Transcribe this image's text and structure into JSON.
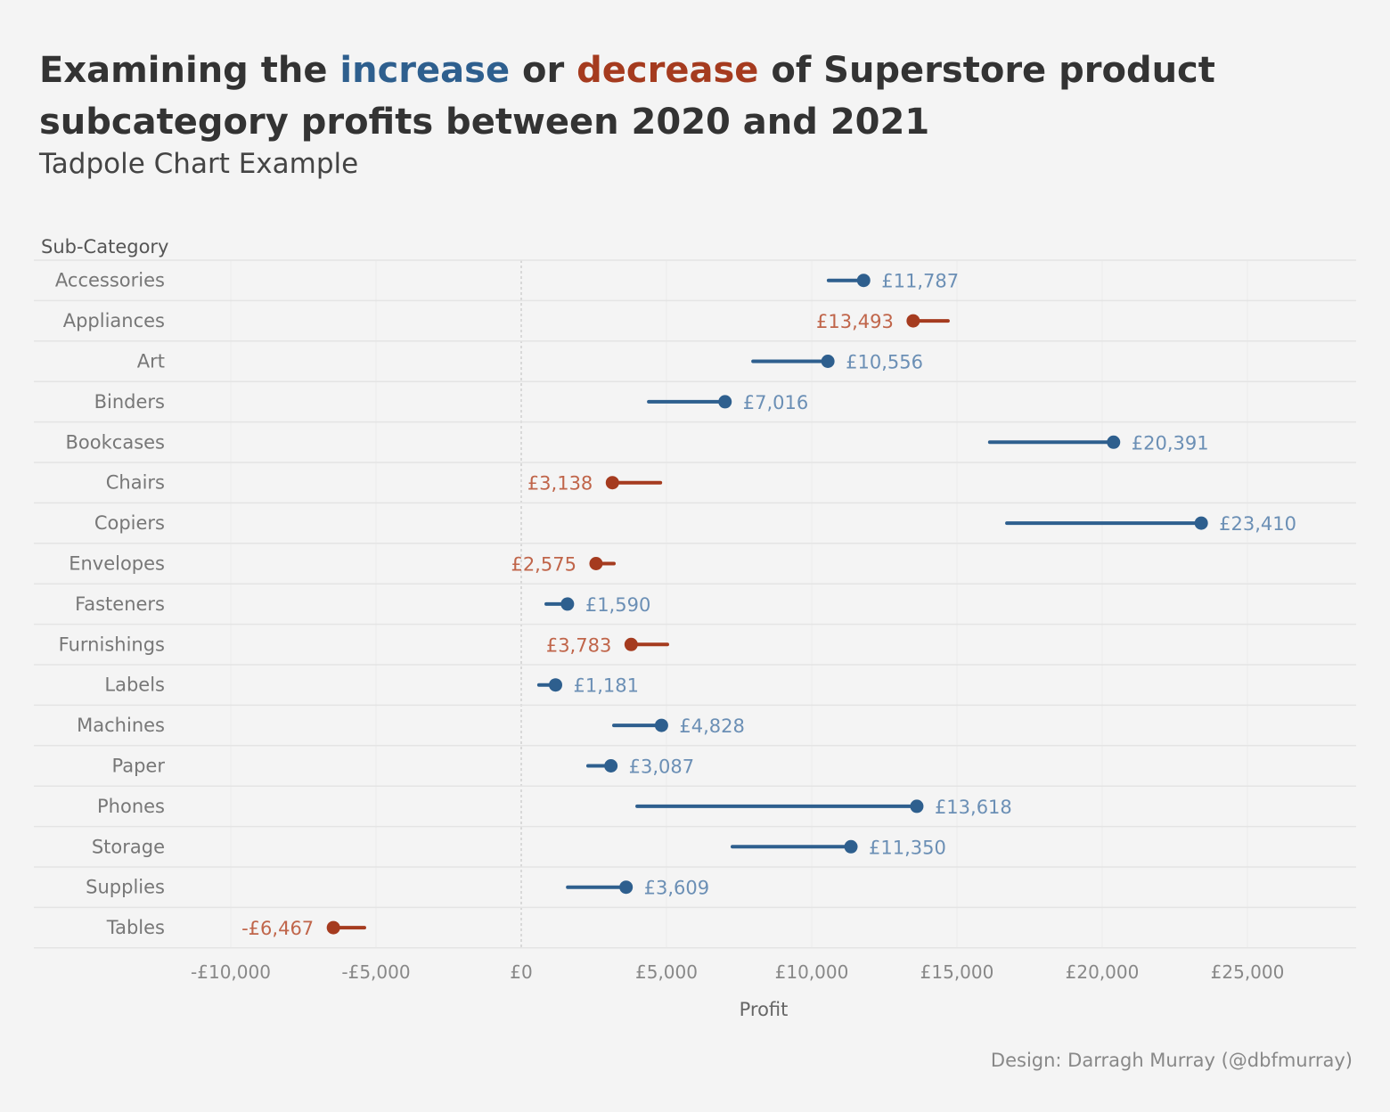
{
  "title": {
    "part1": "Examining the ",
    "increase": "increase",
    "part2": " or ",
    "decrease": "decrease",
    "part3": " of Superstore product subcategory profits between 2020 and 2021"
  },
  "subtitle": "Tadpole Chart Example",
  "credit": "Design: Darragh Murray (@dbfmurray)",
  "colors": {
    "increase": "#2e5f8e",
    "increase_label": "#6b8fb5",
    "decrease": "#a53b1f",
    "decrease_label": "#c0654a"
  },
  "chart_data": {
    "type": "tadpole",
    "row_header": "Sub-Category",
    "xlabel": "Profit",
    "xlim": [
      -10000,
      28500
    ],
    "x_ticks": [
      -10000,
      -5000,
      0,
      5000,
      10000,
      15000,
      20000,
      25000
    ],
    "x_tick_labels": [
      "-£10,000",
      "-£5,000",
      "£0",
      "£5,000",
      "£10,000",
      "£15,000",
      "£20,000",
      "£25,000"
    ],
    "rows": [
      {
        "category": "Accessories",
        "start": 10580,
        "end": 11787,
        "label": "£11,787"
      },
      {
        "category": "Appliances",
        "start": 14690,
        "end": 13493,
        "label": "£13,493"
      },
      {
        "category": "Art",
        "start": 7980,
        "end": 10556,
        "label": "£10,556"
      },
      {
        "category": "Binders",
        "start": 4390,
        "end": 7016,
        "label": "£7,016"
      },
      {
        "category": "Bookcases",
        "start": 16130,
        "end": 20391,
        "label": "£20,391"
      },
      {
        "category": "Chairs",
        "start": 4790,
        "end": 3138,
        "label": "£3,138"
      },
      {
        "category": "Copiers",
        "start": 16720,
        "end": 23410,
        "label": "£23,410"
      },
      {
        "category": "Envelopes",
        "start": 3190,
        "end": 2575,
        "label": "£2,575"
      },
      {
        "category": "Fasteners",
        "start": 860,
        "end": 1590,
        "label": "£1,590"
      },
      {
        "category": "Furnishings",
        "start": 5030,
        "end": 3783,
        "label": "£3,783"
      },
      {
        "category": "Labels",
        "start": 610,
        "end": 1181,
        "label": "£1,181"
      },
      {
        "category": "Machines",
        "start": 3190,
        "end": 4828,
        "label": "£4,828"
      },
      {
        "category": "Paper",
        "start": 2300,
        "end": 3087,
        "label": "£3,087"
      },
      {
        "category": "Phones",
        "start": 3990,
        "end": 13618,
        "label": "£13,618"
      },
      {
        "category": "Storage",
        "start": 7270,
        "end": 11350,
        "label": "£11,350"
      },
      {
        "category": "Supplies",
        "start": 1600,
        "end": 3609,
        "label": "£3,609"
      },
      {
        "category": "Tables",
        "start": -5400,
        "end": -6467,
        "label": "-£6,467"
      }
    ]
  }
}
